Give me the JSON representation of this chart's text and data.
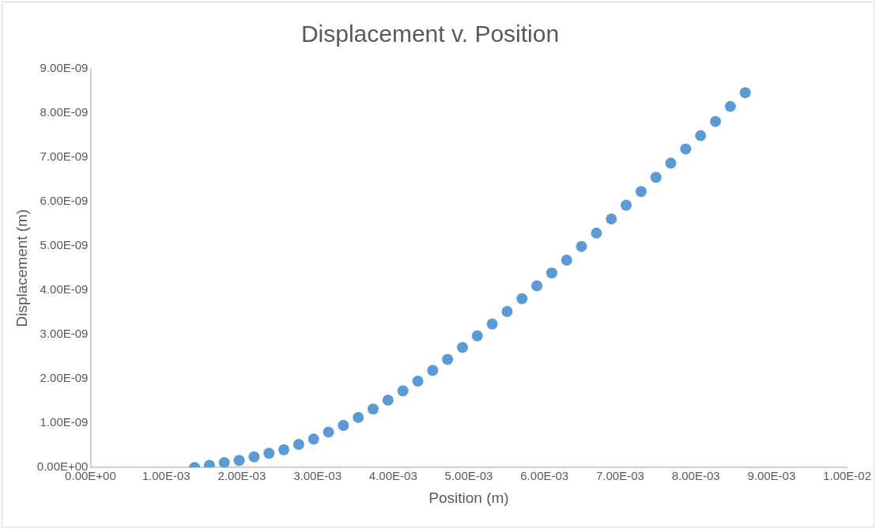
{
  "chart_data": {
    "type": "scatter",
    "title": "Displacement v. Position",
    "xlabel": "Position (m)",
    "ylabel": "Displacement (m)",
    "x": [
      0.001375,
      0.001572,
      0.001768,
      0.001965,
      0.002162,
      0.002359,
      0.002555,
      0.002752,
      0.002949,
      0.003145,
      0.003342,
      0.003539,
      0.003735,
      0.003932,
      0.004129,
      0.004326,
      0.004522,
      0.004719,
      0.004916,
      0.005112,
      0.005309,
      0.005506,
      0.005702,
      0.005899,
      0.006096,
      0.006293,
      0.006489,
      0.006686,
      0.006883,
      0.007079,
      0.007276,
      0.007473,
      0.007669,
      0.007866,
      0.008063,
      0.00826,
      0.008456,
      0.008653
    ],
    "series": [
      {
        "color": "#5b9bd5",
        "values": [
          0,
          5e-11,
          1.1e-10,
          1.6e-10,
          2.4e-10,
          3.2e-10,
          4e-10,
          5.2e-10,
          6.4e-10,
          8e-10,
          9.5e-10,
          1.13e-09,
          1.32e-09,
          1.52e-09,
          1.73e-09,
          1.95e-09,
          2.19e-09,
          2.44e-09,
          2.71e-09,
          2.97e-09,
          3.24e-09,
          3.52e-09,
          3.81e-09,
          4.1e-09,
          4.39e-09,
          4.68e-09,
          4.99e-09,
          5.29e-09,
          5.61e-09,
          5.92e-09,
          6.23e-09,
          6.55e-09,
          6.87e-09,
          7.19e-09,
          7.49e-09,
          7.81e-09,
          8.15e-09,
          8.46e-09
        ]
      }
    ],
    "xlim": [
      0,
      0.01
    ],
    "xticks": [
      {
        "value": 0,
        "label": "0.00E+00"
      },
      {
        "value": 0.001,
        "label": "1.00E-03"
      },
      {
        "value": 0.002,
        "label": "2.00E-03"
      },
      {
        "value": 0.003,
        "label": "3.00E-03"
      },
      {
        "value": 0.004,
        "label": "4.00E-03"
      },
      {
        "value": 0.005,
        "label": "5.00E-03"
      },
      {
        "value": 0.006,
        "label": "6.00E-03"
      },
      {
        "value": 0.007,
        "label": "7.00E-03"
      },
      {
        "value": 0.008,
        "label": "8.00E-03"
      },
      {
        "value": 0.009,
        "label": "9.00E-03"
      },
      {
        "value": 0.01,
        "label": "1.00E-02"
      }
    ],
    "ylim": [
      0,
      9e-09
    ],
    "yticks": [
      {
        "value": 0,
        "label": "0.00E+00"
      },
      {
        "value": 1e-09,
        "label": "1.00E-09"
      },
      {
        "value": 2e-09,
        "label": "2.00E-09"
      },
      {
        "value": 3e-09,
        "label": "3.00E-09"
      },
      {
        "value": 4e-09,
        "label": "4.00E-09"
      },
      {
        "value": 5e-09,
        "label": "5.00E-09"
      },
      {
        "value": 6e-09,
        "label": "6.00E-09"
      },
      {
        "value": 7e-09,
        "label": "7.00E-09"
      },
      {
        "value": 8e-09,
        "label": "8.00E-09"
      },
      {
        "value": 9e-09,
        "label": "9.00E-09"
      }
    ],
    "grid": false,
    "legend": false,
    "marker": "circle"
  }
}
